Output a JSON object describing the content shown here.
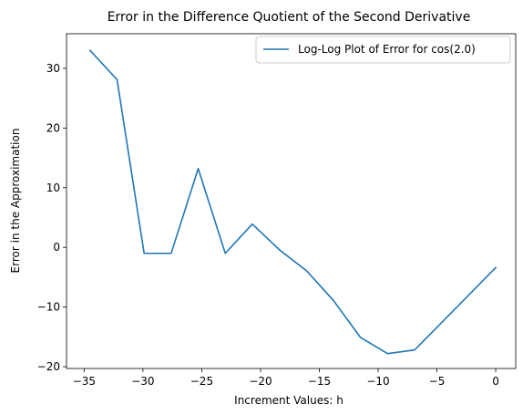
{
  "chart_data": {
    "type": "line",
    "title": "Error in the Difference Quotient of the Second Derivative",
    "xlabel": "Increment Values: h",
    "ylabel": "Error in the Approximation",
    "xlim": [
      -36.5,
      1.7
    ],
    "ylim": [
      -20.3,
      35.8
    ],
    "xticks": [
      -35,
      -30,
      -25,
      -20,
      -15,
      -10,
      -5,
      0
    ],
    "xtick_labels": [
      "−35",
      "−30",
      "−25",
      "−20",
      "−15",
      "−10",
      "−5",
      "0"
    ],
    "yticks": [
      -20,
      -10,
      0,
      10,
      20,
      30
    ],
    "ytick_labels": [
      "−20",
      "−10",
      "0",
      "10",
      "20",
      "30"
    ],
    "grid": false,
    "legend_position": "top-right",
    "series": [
      {
        "name": "Log-Log Plot of Error for cos(2.0)",
        "color": "#1f77b4",
        "x": [
          -34.5,
          -32.2,
          -29.9,
          -27.6,
          -25.3,
          -23.0,
          -20.7,
          -18.4,
          -16.1,
          -13.8,
          -11.5,
          -9.2,
          -6.9,
          -4.6,
          -2.3,
          0.0
        ],
        "y": [
          33.0,
          28.1,
          -1.0,
          -1.0,
          13.2,
          -1.0,
          3.9,
          -0.4,
          -3.9,
          -8.9,
          -15.1,
          -17.8,
          -17.2,
          -12.6,
          -8.0,
          -3.4
        ]
      }
    ]
  }
}
